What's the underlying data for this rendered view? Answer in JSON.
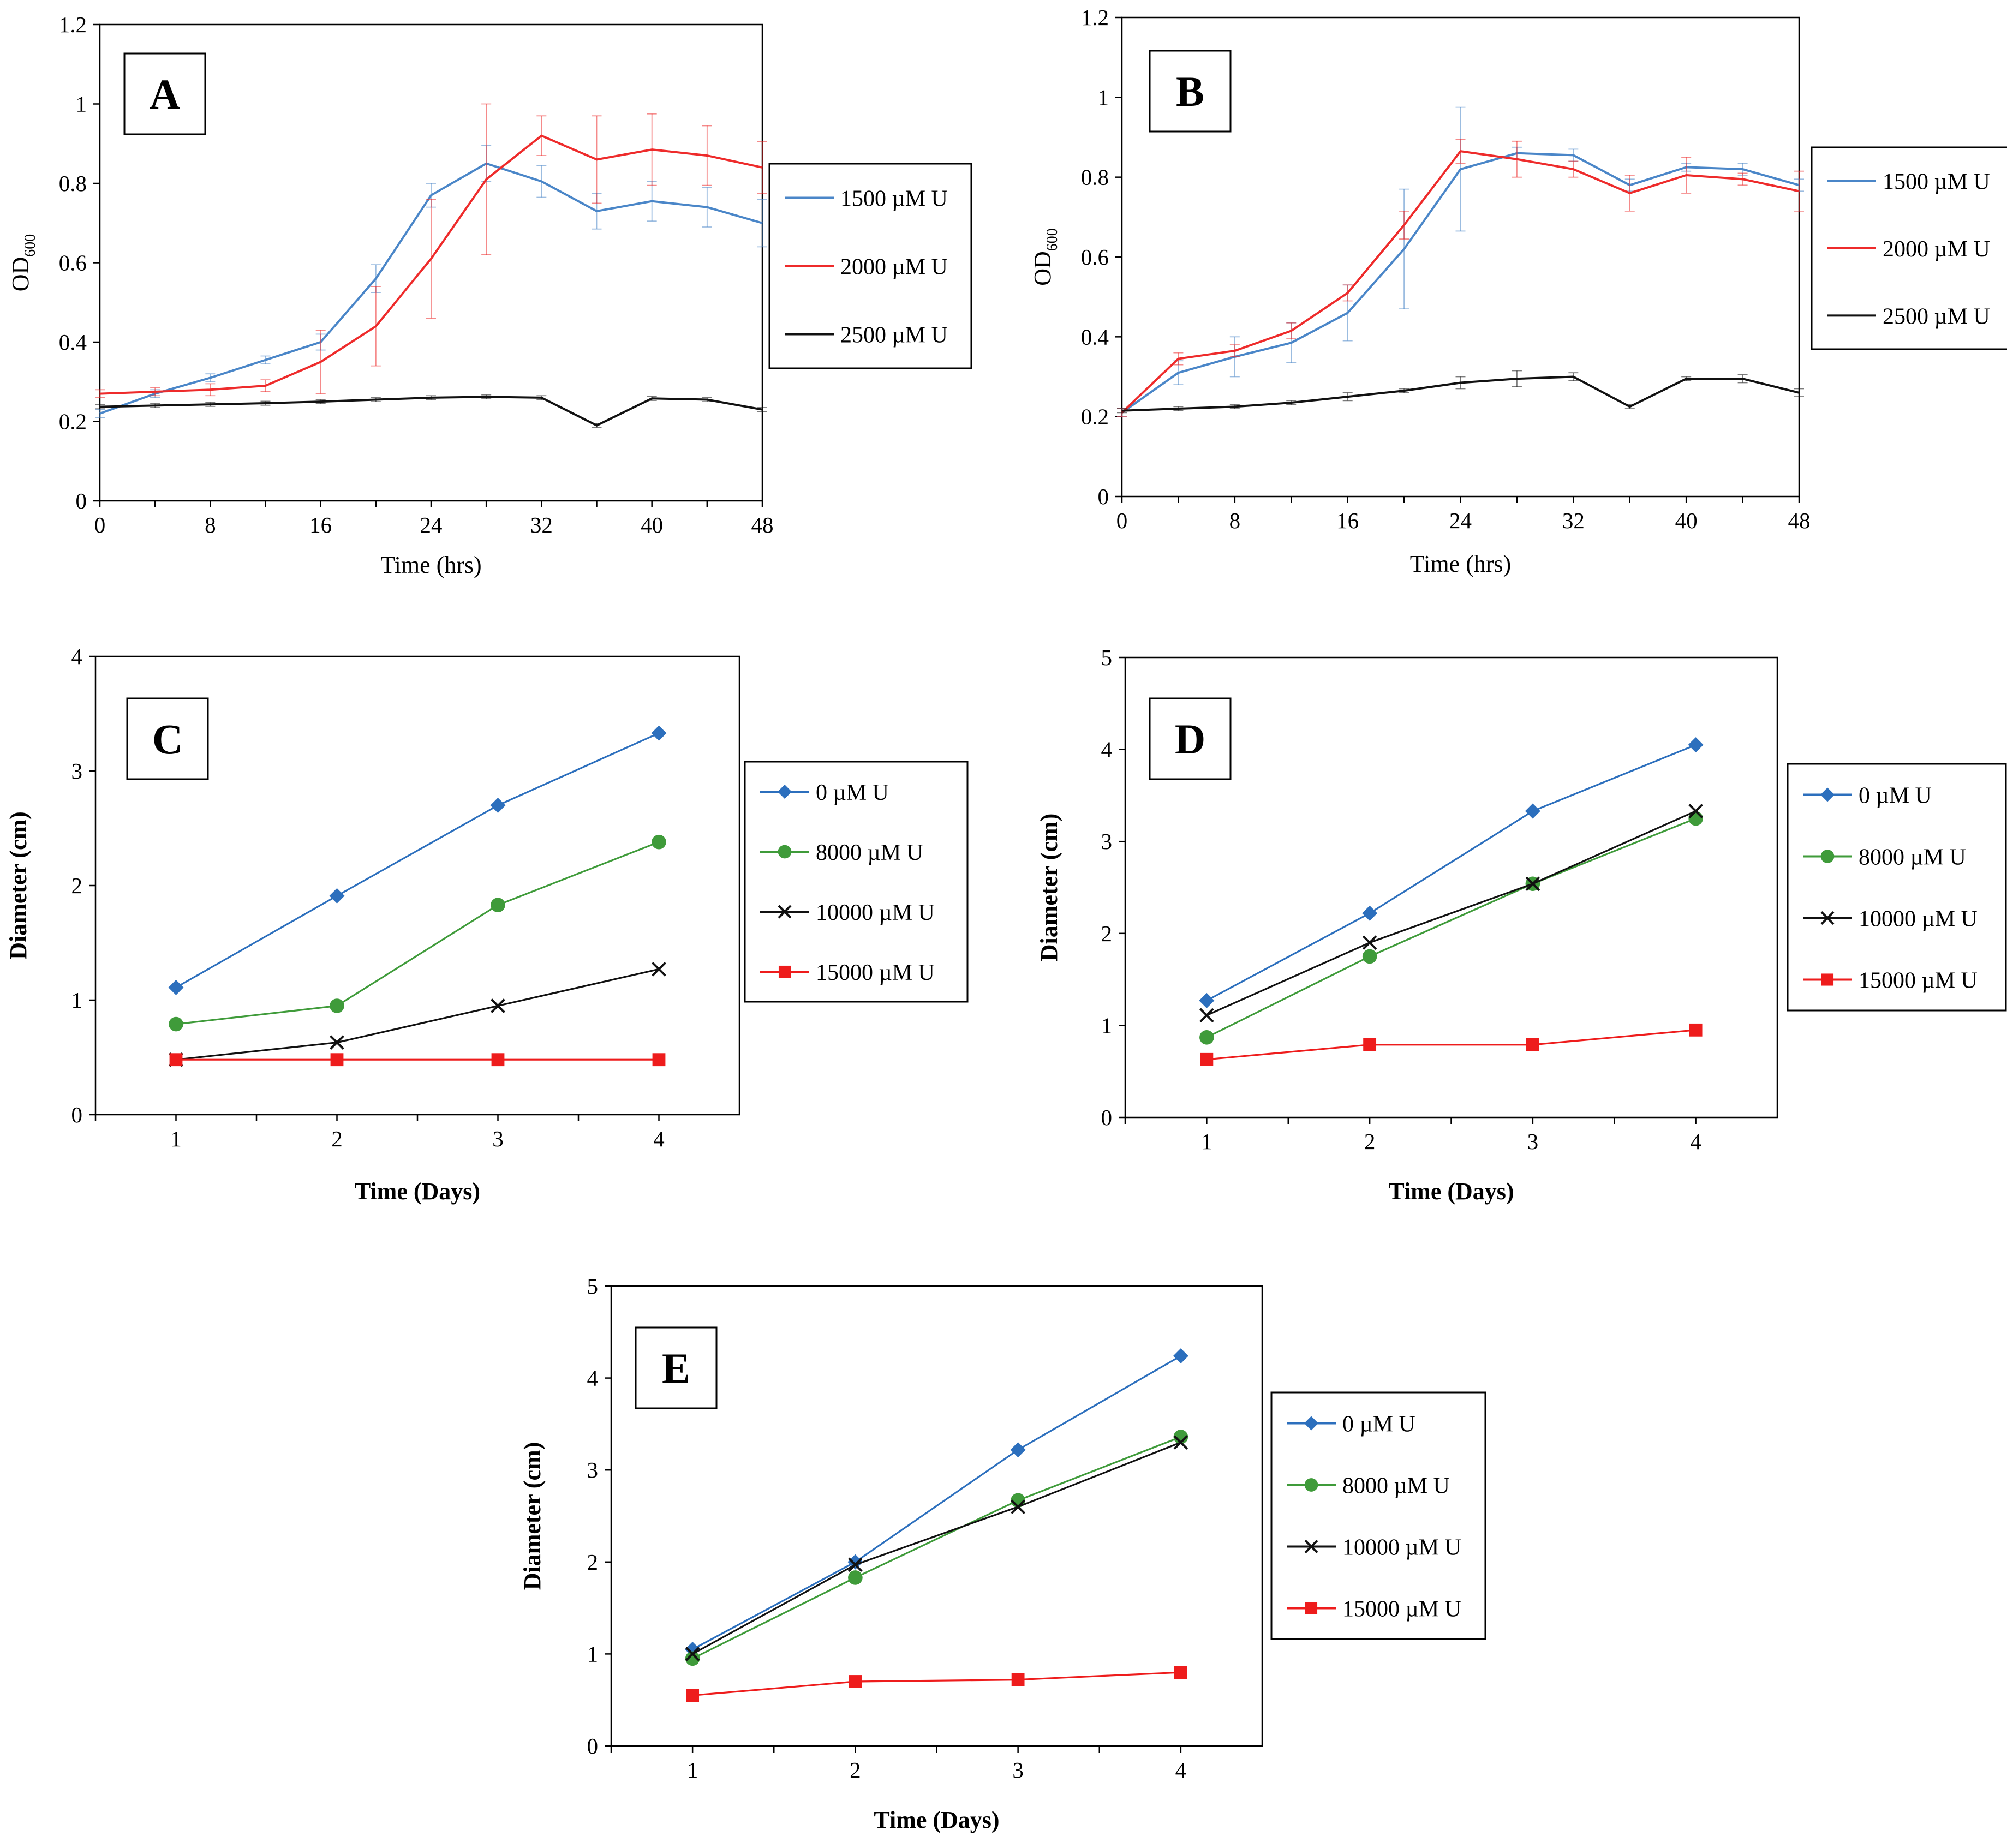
{
  "chart_data": [
    {
      "id": "A",
      "type": "line",
      "panel_label": "A",
      "xlabel": "Time (hrs)",
      "ylabel": "OD",
      "ylabel_sub": "600",
      "xlim": [
        0,
        48
      ],
      "ylim": [
        0,
        1.2
      ],
      "xticks": [
        0,
        8,
        16,
        24,
        32,
        40,
        48
      ],
      "yticks": [
        0,
        0.2,
        0.4,
        0.6,
        0.8,
        1,
        1.2
      ],
      "x": [
        0,
        4,
        8,
        12,
        16,
        20,
        24,
        28,
        32,
        36,
        40,
        44,
        48
      ],
      "series": [
        {
          "name": "1500 µM U",
          "color": "#4a86c8",
          "marker": "none",
          "values": [
            0.22,
            0.27,
            0.31,
            0.355,
            0.4,
            0.56,
            0.77,
            0.85,
            0.805,
            0.73,
            0.755,
            0.74,
            0.7
          ],
          "errors": [
            0.01,
            0.01,
            0.01,
            0.01,
            0.02,
            0.035,
            0.03,
            0.045,
            0.04,
            0.045,
            0.05,
            0.05,
            0.06
          ]
        },
        {
          "name": "2000 µM U",
          "color": "#ee2b2b",
          "marker": "none",
          "values": [
            0.27,
            0.275,
            0.28,
            0.29,
            0.35,
            0.44,
            0.61,
            0.81,
            0.92,
            0.86,
            0.885,
            0.87,
            0.84
          ],
          "errors": [
            0.01,
            0.01,
            0.015,
            0.015,
            0.08,
            0.1,
            0.15,
            0.19,
            0.05,
            0.11,
            0.09,
            0.075,
            0.065
          ]
        },
        {
          "name": "2500 µM U",
          "color": "#111111",
          "marker": "none",
          "values": [
            0.237,
            0.24,
            0.243,
            0.246,
            0.25,
            0.255,
            0.26,
            0.262,
            0.26,
            0.19,
            0.258,
            0.255,
            0.23
          ],
          "errors": [
            0.005,
            0.005,
            0.005,
            0.005,
            0.005,
            0.005,
            0.005,
            0.005,
            0.005,
            0.005,
            0.005,
            0.005,
            0.005
          ]
        }
      ]
    },
    {
      "id": "B",
      "type": "line",
      "panel_label": "B",
      "xlabel": "Time (hrs)",
      "ylabel": "OD",
      "ylabel_sub": "600",
      "xlim": [
        0,
        48
      ],
      "ylim": [
        0,
        1.2
      ],
      "xticks": [
        0,
        8,
        16,
        24,
        32,
        40,
        48
      ],
      "yticks": [
        0,
        0.2,
        0.4,
        0.6,
        0.8,
        1,
        1.2
      ],
      "x": [
        0,
        4,
        8,
        12,
        16,
        20,
        24,
        28,
        32,
        36,
        40,
        44,
        48
      ],
      "series": [
        {
          "name": "1500 µM U",
          "color": "#4a86c8",
          "marker": "none",
          "values": [
            0.21,
            0.31,
            0.35,
            0.385,
            0.46,
            0.62,
            0.82,
            0.86,
            0.855,
            0.78,
            0.825,
            0.82,
            0.78
          ],
          "errors": [
            0.01,
            0.03,
            0.05,
            0.05,
            0.07,
            0.15,
            0.155,
            0.015,
            0.015,
            0.015,
            0.01,
            0.015,
            0.015
          ]
        },
        {
          "name": "2000 µM U",
          "color": "#ee2b2b",
          "marker": "none",
          "values": [
            0.21,
            0.345,
            0.365,
            0.415,
            0.51,
            0.68,
            0.865,
            0.845,
            0.82,
            0.76,
            0.805,
            0.795,
            0.765
          ],
          "errors": [
            0.01,
            0.015,
            0.015,
            0.02,
            0.02,
            0.035,
            0.03,
            0.045,
            0.02,
            0.045,
            0.045,
            0.015,
            0.05
          ]
        },
        {
          "name": "2500 µM U",
          "color": "#111111",
          "marker": "none",
          "values": [
            0.215,
            0.22,
            0.225,
            0.235,
            0.25,
            0.265,
            0.285,
            0.295,
            0.3,
            0.225,
            0.295,
            0.295,
            0.26
          ],
          "errors": [
            0.005,
            0.005,
            0.005,
            0.005,
            0.01,
            0.005,
            0.015,
            0.02,
            0.01,
            0.005,
            0.005,
            0.01,
            0.01
          ]
        }
      ]
    },
    {
      "id": "C",
      "type": "line",
      "panel_label": "C",
      "xlabel": "Time (Days)",
      "ylabel": "Diameter (cm)",
      "xlim": [
        0.5,
        4.5
      ],
      "ylim": [
        0,
        4
      ],
      "xticks": [
        1,
        2,
        3,
        4
      ],
      "yticks": [
        0,
        1,
        2,
        3,
        4
      ],
      "x": [
        1,
        2,
        3,
        4
      ],
      "series": [
        {
          "name": "0 µM U",
          "color": "#2c6fbd",
          "marker": "diamond",
          "values": [
            1.11,
            1.91,
            2.7,
            3.33
          ]
        },
        {
          "name": "8000 µM U",
          "color": "#3f9b3a",
          "marker": "circle",
          "values": [
            0.79,
            0.95,
            1.83,
            2.38
          ]
        },
        {
          "name": "10000 µM U",
          "color": "#111111",
          "marker": "x",
          "values": [
            0.48,
            0.63,
            0.95,
            1.27
          ]
        },
        {
          "name": "15000 µM U",
          "color": "#ee1c1c",
          "marker": "square",
          "values": [
            0.48,
            0.48,
            0.48,
            0.48
          ]
        }
      ]
    },
    {
      "id": "D",
      "type": "line",
      "panel_label": "D",
      "xlabel": "Time (Days)",
      "ylabel": "Diameter (cm)",
      "xlim": [
        0.5,
        4.5
      ],
      "ylim": [
        0,
        5
      ],
      "xticks": [
        1,
        2,
        3,
        4
      ],
      "yticks": [
        0,
        1,
        2,
        3,
        4,
        5
      ],
      "x": [
        1,
        2,
        3,
        4
      ],
      "series": [
        {
          "name": "0 µM U",
          "color": "#2c6fbd",
          "marker": "diamond",
          "values": [
            1.27,
            2.22,
            3.33,
            4.05
          ]
        },
        {
          "name": "8000 µM U",
          "color": "#3f9b3a",
          "marker": "circle",
          "values": [
            0.87,
            1.75,
            2.54,
            3.25
          ]
        },
        {
          "name": "10000 µM U",
          "color": "#111111",
          "marker": "x",
          "values": [
            1.11,
            1.9,
            2.54,
            3.33
          ]
        },
        {
          "name": "15000 µM U",
          "color": "#ee1c1c",
          "marker": "square",
          "values": [
            0.63,
            0.79,
            0.79,
            0.95
          ]
        }
      ]
    },
    {
      "id": "E",
      "type": "line",
      "panel_label": "E",
      "xlabel": "Time (Days)",
      "ylabel": "Diameter (cm)",
      "xlim": [
        0.5,
        4.5
      ],
      "ylim": [
        0,
        5
      ],
      "xticks": [
        1,
        2,
        3,
        4
      ],
      "yticks": [
        0,
        1,
        2,
        3,
        4,
        5
      ],
      "x": [
        1,
        2,
        3,
        4
      ],
      "series": [
        {
          "name": "0 µM U",
          "color": "#2c6fbd",
          "marker": "diamond",
          "values": [
            1.05,
            2.0,
            3.22,
            4.24
          ]
        },
        {
          "name": "8000 µM U",
          "color": "#3f9b3a",
          "marker": "circle",
          "values": [
            0.95,
            1.83,
            2.67,
            3.36
          ]
        },
        {
          "name": "10000 µM U",
          "color": "#111111",
          "marker": "x",
          "values": [
            1.0,
            1.97,
            2.6,
            3.3
          ]
        },
        {
          "name": "15000 µM U",
          "color": "#ee1c1c",
          "marker": "square",
          "values": [
            0.55,
            0.7,
            0.72,
            0.8
          ]
        }
      ]
    }
  ]
}
